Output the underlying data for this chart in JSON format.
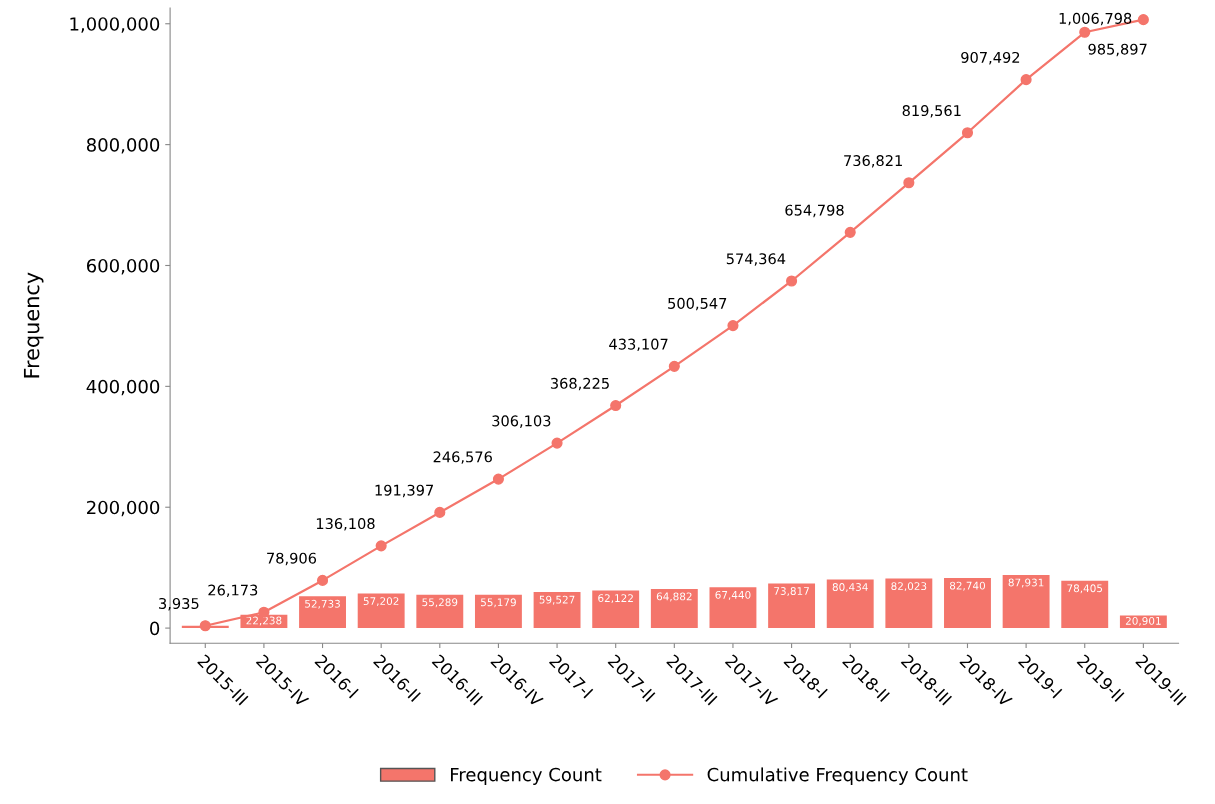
{
  "chart_data": {
    "type": "bar",
    "ylabel": "Frequency",
    "categories": [
      "2015-III",
      "2015-IV",
      "2016-I",
      "2016-II",
      "2016-III",
      "2016-IV",
      "2017-I",
      "2017-II",
      "2017-III",
      "2017-IV",
      "2018-I",
      "2018-II",
      "2018-III",
      "2018-IV",
      "2019-I",
      "2019-II",
      "2019-III"
    ],
    "series": [
      {
        "name": "Frequency Count",
        "color": "#f4756b",
        "values": [
          3935,
          22238,
          52733,
          57202,
          55289,
          55179,
          59527,
          62122,
          64882,
          67440,
          73817,
          80434,
          82023,
          82740,
          87931,
          78405,
          20901
        ],
        "value_labels": [
          null,
          "22,238",
          "52,733",
          "57,202",
          "55,289",
          "55,179",
          "59,527",
          "62,122",
          "64,882",
          "67,440",
          "73,817",
          "80,434",
          "82,023",
          "82,740",
          "87,931",
          "78,405",
          "20,901"
        ]
      },
      {
        "name": "Cumulative Frequency Count",
        "type": "line",
        "color": "#f4756b",
        "values": [
          3935,
          26173,
          78906,
          136108,
          191397,
          246576,
          306103,
          368225,
          433107,
          500547,
          574364,
          654798,
          736821,
          819561,
          907492,
          985897,
          1006798
        ],
        "value_labels": [
          "3,935",
          "26,173",
          "78,906",
          "136,108",
          "191,397",
          "246,576",
          "306,103",
          "368,225",
          "433,107",
          "500,547",
          "574,364",
          "654,798",
          "736,821",
          "819,561",
          "907,492",
          "985,897",
          "1,006,798"
        ]
      }
    ],
    "ylim": [
      -25000,
      1026000
    ],
    "yticks": [
      {
        "value": 0,
        "label": "0"
      },
      {
        "value": 200000,
        "label": "200,000"
      },
      {
        "value": 400000,
        "label": "400,000"
      },
      {
        "value": 600000,
        "label": "600,000"
      },
      {
        "value": 800000,
        "label": "800,000"
      },
      {
        "value": 1000000,
        "label": "1,000,000"
      }
    ],
    "grid": false,
    "legend": "bottom",
    "marker": "circle",
    "line_style": "solid"
  }
}
